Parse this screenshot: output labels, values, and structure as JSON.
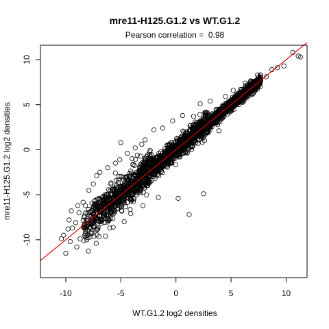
{
  "chart_data": {
    "type": "scatter",
    "title": "mre11-H125.G1.2 vs WT.G1.2",
    "subtitle": "Pearson correlation =  0.98",
    "xlabel": "WT.G1.2 log2 densities",
    "ylabel": "mre11-H125.G1.2 log2 densities",
    "xlim": [
      -12.3,
      11.9
    ],
    "ylim": [
      -14.2,
      11.6
    ],
    "xticks": [
      -10,
      -5,
      0,
      5,
      10
    ],
    "yticks": [
      -10,
      -5,
      0,
      5,
      10
    ],
    "x_tick_labels": [
      "-10",
      "-5",
      "0",
      "5",
      "10"
    ],
    "y_tick_labels": [
      "-10",
      "-5",
      "0",
      "5",
      "10"
    ],
    "grid": false,
    "legend": "none",
    "marker": "open-circle",
    "point_color": "#000000",
    "fit_line": {
      "color": "#dd0000",
      "slope": 1.0,
      "intercept": 0.0,
      "x_range": [
        -12.3,
        11.9
      ]
    },
    "points": [
      {
        "x": -10.0,
        "y": -11.5
      },
      {
        "x": -10.4,
        "y": -9.9
      },
      {
        "x": -10.2,
        "y": -9.5
      },
      {
        "x": -9.6,
        "y": -10.2
      },
      {
        "x": -9.8,
        "y": -8.8
      },
      {
        "x": -9.4,
        "y": -8.7
      },
      {
        "x": -9.7,
        "y": -7.8
      },
      {
        "x": -9.0,
        "y": -10.8
      },
      {
        "x": -9.5,
        "y": -6.8
      },
      {
        "x": -8.9,
        "y": -6.2
      },
      {
        "x": -8.8,
        "y": -7.0
      },
      {
        "x": -9.1,
        "y": -8.1
      },
      {
        "x": -8.7,
        "y": -9.9
      },
      {
        "x": -8.1,
        "y": -10.0
      },
      {
        "x": -7.8,
        "y": -9.7
      },
      {
        "x": -7.9,
        "y": -4.5
      },
      {
        "x": -7.5,
        "y": -3.8
      },
      {
        "x": -7.2,
        "y": -2.9
      },
      {
        "x": -6.9,
        "y": -2.5
      },
      {
        "x": -6.4,
        "y": -9.6
      },
      {
        "x": -6.2,
        "y": -2.0
      },
      {
        "x": -6.0,
        "y": -8.7
      },
      {
        "x": -5.7,
        "y": -8.6
      },
      {
        "x": -5.5,
        "y": -1.5
      },
      {
        "x": -5.1,
        "y": -1.1
      },
      {
        "x": -5.0,
        "y": 0.8
      },
      {
        "x": -4.7,
        "y": -8.0
      },
      {
        "x": -4.4,
        "y": -0.4
      },
      {
        "x": -4.1,
        "y": -7.1
      },
      {
        "x": -3.7,
        "y": 0.2
      },
      {
        "x": -3.5,
        "y": -0.6
      },
      {
        "x": -3.1,
        "y": 0.6
      },
      {
        "x": -2.8,
        "y": 1.1
      },
      {
        "x": -2.0,
        "y": 2.2
      },
      {
        "x": -1.6,
        "y": -5.3
      },
      {
        "x": -1.2,
        "y": 2.4
      },
      {
        "x": -0.3,
        "y": 3.2
      },
      {
        "x": 0.2,
        "y": -5.4
      },
      {
        "x": 0.6,
        "y": 3.8
      },
      {
        "x": 1.2,
        "y": -7.2
      },
      {
        "x": 1.6,
        "y": 3.7
      },
      {
        "x": 2.2,
        "y": 5.1
      },
      {
        "x": 2.5,
        "y": -4.9
      },
      {
        "x": 3.1,
        "y": 5.4
      },
      {
        "x": 3.9,
        "y": 2.1
      },
      {
        "x": 4.5,
        "y": 5.9
      },
      {
        "x": 5.2,
        "y": 6.6
      },
      {
        "x": 5.8,
        "y": 6.4
      },
      {
        "x": 6.3,
        "y": 7.4
      },
      {
        "x": 6.9,
        "y": 7.6
      },
      {
        "x": 7.4,
        "y": 8.3
      },
      {
        "x": 8.2,
        "y": 8.1
      },
      {
        "x": 8.7,
        "y": 8.9
      },
      {
        "x": 9.2,
        "y": 9.1
      },
      {
        "x": 9.8,
        "y": 9.3
      },
      {
        "x": 10.6,
        "y": 10.8
      },
      {
        "x": 11.1,
        "y": 10.4
      },
      {
        "x": 11.3,
        "y": 10.3
      }
    ]
  }
}
